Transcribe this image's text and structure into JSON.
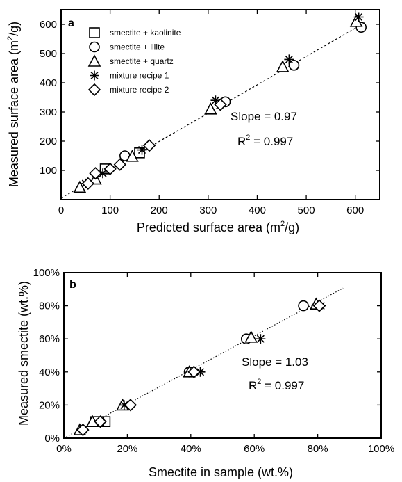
{
  "chart_data": [
    {
      "panel_label": "a",
      "type": "scatter",
      "xlabel_main": "Predicted surface area (m",
      "xlabel_sup": "2",
      "xlabel_end": "/g)",
      "ylabel_main": "Measured surface area (m",
      "ylabel_sup": "2",
      "ylabel_end": "/g)",
      "xlim": [
        0,
        650
      ],
      "ylim": [
        0,
        650
      ],
      "xticks": [
        0,
        100,
        200,
        300,
        400,
        500,
        600
      ],
      "yticks": [
        100,
        200,
        300,
        400,
        500,
        600
      ],
      "xtick_labels": [
        "0",
        "100",
        "200",
        "300",
        "400",
        "500",
        "600"
      ],
      "ytick_labels": [
        "100",
        "200",
        "300",
        "400",
        "500",
        "600"
      ],
      "fit_line": {
        "slope": 0.97,
        "intercept": 5,
        "x_range": [
          0,
          620
        ]
      },
      "annotation_slope": "Slope = 0.97",
      "annotation_r_main": "R",
      "annotation_r_sup": "2",
      "annotation_r_end": " = 0.997",
      "legend_position": "top-left",
      "series": [
        {
          "name": "smectite + kaolinite",
          "marker": "square",
          "points": [
            [
              90,
              105
            ],
            [
              160,
              160
            ]
          ]
        },
        {
          "name": "smectite + illite",
          "marker": "circle",
          "points": [
            [
              130,
              150
            ],
            [
              335,
              335
            ],
            [
              475,
              460
            ],
            [
              612,
              590
            ]
          ]
        },
        {
          "name": "smectite + quartz",
          "marker": "triangle",
          "points": [
            [
              38,
              42
            ],
            [
              70,
              70
            ],
            [
              145,
              148
            ],
            [
              305,
              310
            ],
            [
              452,
              455
            ],
            [
              602,
              610
            ]
          ]
        },
        {
          "name": "mixture recipe 1",
          "marker": "asterisk",
          "points": [
            [
              50,
              55
            ],
            [
              85,
              90
            ],
            [
              165,
              170
            ],
            [
              315,
              340
            ],
            [
              465,
              480
            ],
            [
              607,
              625
            ]
          ]
        },
        {
          "name": "mixture recipe 2",
          "marker": "diamond",
          "points": [
            [
              55,
              55
            ],
            [
              70,
              90
            ],
            [
              100,
              105
            ],
            [
              120,
              120
            ],
            [
              180,
              185
            ],
            [
              325,
              325
            ]
          ]
        }
      ]
    },
    {
      "panel_label": "b",
      "type": "scatter",
      "xlabel": "Smectite in sample (wt.%)",
      "ylabel": "Measured smectite (wt.%)",
      "xlim": [
        0,
        100
      ],
      "ylim": [
        0,
        100
      ],
      "xticks": [
        0,
        20,
        40,
        60,
        80,
        100
      ],
      "yticks": [
        0,
        20,
        40,
        60,
        80,
        100
      ],
      "xtick_labels": [
        "0%",
        "20%",
        "40%",
        "60%",
        "80%",
        "100%"
      ],
      "ytick_labels": [
        "0%",
        "20%",
        "40%",
        "60%",
        "80%",
        "100%"
      ],
      "fit_line": {
        "slope": 1.03,
        "intercept": 0,
        "x_range": [
          0,
          88
        ]
      },
      "annotation_slope": "Slope = 1.03",
      "annotation_r_main": "R",
      "annotation_r_sup": "2",
      "annotation_r_end": " = 0.997",
      "series": [
        {
          "name": "smectite + kaolinite",
          "marker": "square",
          "points": [
            [
              13,
              10
            ],
            [
              11,
              10
            ],
            [
              10,
              10
            ]
          ]
        },
        {
          "name": "smectite + illite",
          "marker": "circle",
          "points": [
            [
              75.5,
              80
            ],
            [
              39.5,
              40
            ],
            [
              57.5,
              60
            ]
          ]
        },
        {
          "name": "smectite + quartz",
          "marker": "triangle",
          "points": [
            [
              5,
              5
            ],
            [
              9,
              10
            ],
            [
              18.5,
              20
            ],
            [
              39.5,
              40
            ],
            [
              59,
              61
            ],
            [
              79.5,
              81
            ]
          ]
        },
        {
          "name": "mixture recipe 1",
          "marker": "asterisk",
          "points": [
            [
              6,
              5
            ],
            [
              19,
              20
            ],
            [
              43,
              40
            ],
            [
              62,
              60
            ],
            [
              81,
              80
            ]
          ]
        },
        {
          "name": "mixture recipe 2",
          "marker": "diamond",
          "points": [
            [
              6,
              5
            ],
            [
              11.5,
              10
            ],
            [
              21,
              20
            ],
            [
              41,
              40
            ],
            [
              80.5,
              80
            ]
          ]
        }
      ]
    }
  ]
}
